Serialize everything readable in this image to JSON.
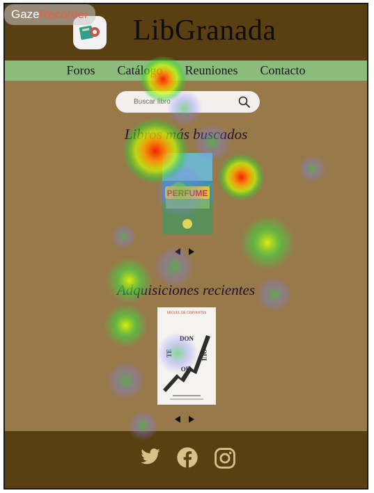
{
  "app": {
    "title": "LibGranada"
  },
  "overlay": {
    "brand_part1": "Gaze",
    "brand_part2": "Recorder"
  },
  "nav": {
    "items": [
      {
        "label": "Foros"
      },
      {
        "label": "Catálogo"
      },
      {
        "label": "Reuniones"
      },
      {
        "label": "Contacto"
      }
    ]
  },
  "search": {
    "placeholder": "Buscar libro",
    "icon": "search-icon"
  },
  "sections": {
    "popular": {
      "title": "Libros más buscados",
      "book": {
        "cover_title": "PERFUME",
        "icon": "book-cover"
      }
    },
    "recent": {
      "title": "Adquisiciones recientes",
      "book": {
        "author": "MIGUEL DE CERVANTES",
        "word1": "DON",
        "word2": "QUI",
        "word3": "JO",
        "word4": "TE",
        "word5": "OF",
        "sub": "PENGUIN CLÁSICOS"
      }
    }
  },
  "footer": {
    "icons": [
      "twitter-icon",
      "facebook-icon",
      "instagram-icon"
    ]
  },
  "colors": {
    "header": "#5a3f12",
    "nav": "#8cbc7c",
    "body": "#98794a",
    "footer": "#5a3f12"
  }
}
